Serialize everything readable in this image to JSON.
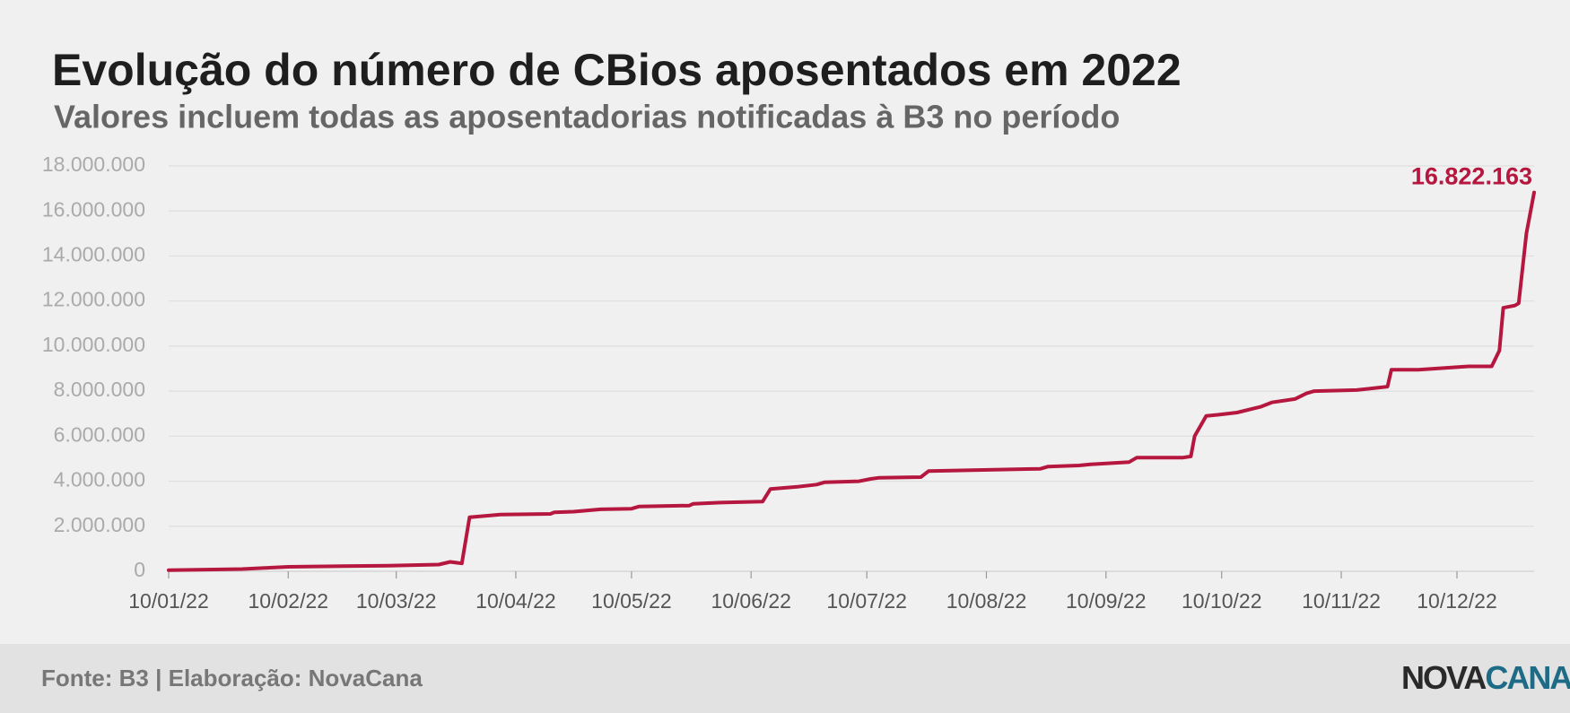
{
  "chart_data": {
    "type": "line",
    "title": "Evolução do número de CBios aposentados em 2022",
    "subtitle": "Valores incluem todas as aposentadorias notificadas à B3 no período",
    "x": [
      "2022-01-10",
      "2022-01-29",
      "2022-02-10",
      "2022-03-08",
      "2022-03-21",
      "2022-03-24",
      "2022-03-27",
      "2022-03-29",
      "2022-04-06",
      "2022-04-19",
      "2022-04-20",
      "2022-04-25",
      "2022-05-02",
      "2022-05-10",
      "2022-05-12",
      "2022-05-25",
      "2022-05-26",
      "2022-06-02",
      "2022-06-13",
      "2022-06-15",
      "2022-06-22",
      "2022-06-27",
      "2022-06-29",
      "2022-07-08",
      "2022-07-11",
      "2022-07-13",
      "2022-07-24",
      "2022-07-26",
      "2022-08-24",
      "2022-08-26",
      "2022-09-03",
      "2022-09-06",
      "2022-09-16",
      "2022-09-18",
      "2022-09-30",
      "2022-10-02",
      "2022-10-03",
      "2022-10-06",
      "2022-10-09",
      "2022-10-14",
      "2022-10-20",
      "2022-10-23",
      "2022-10-29",
      "2022-11-01",
      "2022-11-03",
      "2022-11-14",
      "2022-11-22",
      "2022-11-23",
      "2022-11-30",
      "2022-12-13",
      "2022-12-19",
      "2022-12-21",
      "2022-12-22",
      "2022-12-25",
      "2022-12-26",
      "2022-12-28",
      "2022-12-30"
    ],
    "series": [
      {
        "name": "CBios aposentados",
        "color": "#b5173f",
        "values": [
          50000,
          100000,
          200000,
          250000,
          300000,
          420000,
          350000,
          2400000,
          2520000,
          2550000,
          2620000,
          2650000,
          2750000,
          2780000,
          2880000,
          2920000,
          3000000,
          3050000,
          3100000,
          3650000,
          3750000,
          3850000,
          3950000,
          4000000,
          4100000,
          4150000,
          4180000,
          4450000,
          4550000,
          4650000,
          4700000,
          4750000,
          4850000,
          5050000,
          5050000,
          5100000,
          6000000,
          6900000,
          6950000,
          7050000,
          7300000,
          7500000,
          7650000,
          7900000,
          8000000,
          8050000,
          8200000,
          8950000,
          8950000,
          9100000,
          9100000,
          9800000,
          11700000,
          11800000,
          11900000,
          15000000,
          16822163
        ],
        "value_labels": [
          null,
          null,
          null,
          null,
          null,
          null,
          null,
          null,
          null,
          null,
          null,
          null,
          null,
          null,
          null,
          null,
          null,
          null,
          null,
          null,
          null,
          null,
          null,
          null,
          null,
          null,
          null,
          null,
          null,
          null,
          null,
          null,
          null,
          null,
          null,
          null,
          null,
          null,
          null,
          null,
          null,
          null,
          null,
          null,
          null,
          null,
          null,
          null,
          null,
          null,
          null,
          null,
          null,
          null,
          null,
          null,
          "16.822.163"
        ]
      }
    ],
    "xlim": [
      "2022-01-10",
      "2022-12-30"
    ],
    "xticks": [
      {
        "value": "2022-01-10",
        "label": "10/01/22"
      },
      {
        "value": "2022-02-10",
        "label": "10/02/22"
      },
      {
        "value": "2022-03-10",
        "label": "10/03/22"
      },
      {
        "value": "2022-04-10",
        "label": "10/04/22"
      },
      {
        "value": "2022-05-10",
        "label": "10/05/22"
      },
      {
        "value": "2022-06-10",
        "label": "10/06/22"
      },
      {
        "value": "2022-07-10",
        "label": "10/07/22"
      },
      {
        "value": "2022-08-10",
        "label": "10/08/22"
      },
      {
        "value": "2022-09-10",
        "label": "10/09/22"
      },
      {
        "value": "2022-10-10",
        "label": "10/10/22"
      },
      {
        "value": "2022-11-10",
        "label": "10/11/22"
      },
      {
        "value": "2022-12-10",
        "label": "10/12/22"
      }
    ],
    "ylim": [
      0,
      18000000
    ],
    "yticks": [
      0,
      {
        "value": 2000000,
        "label": "2.000.000"
      },
      {
        "value": 4000000,
        "label": "4.000.000"
      },
      {
        "value": 6000000,
        "label": "6.000.000"
      },
      {
        "value": 8000000,
        "label": "8.000.000"
      },
      {
        "value": 10000000,
        "label": "10.000.000"
      },
      {
        "value": 12000000,
        "label": "12.000.000"
      },
      {
        "value": 14000000,
        "label": "14.000.000"
      },
      {
        "value": 16000000,
        "label": "16.000.000"
      },
      {
        "value": 18000000,
        "label": "18.000.000"
      }
    ],
    "grid": true
  },
  "footer": {
    "source": "Fonte: B3 | Elaboração: NovaCana",
    "logo_left": "NOVA",
    "logo_right": "CANA"
  }
}
